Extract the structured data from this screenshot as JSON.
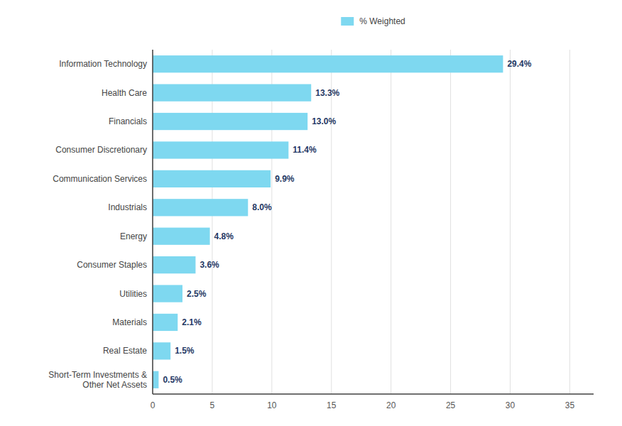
{
  "chart_data": {
    "type": "bar",
    "orientation": "horizontal",
    "categories": [
      "Short-Term Investments &\nOther Net Assets",
      "Real Estate",
      "Materials",
      "Utilities",
      "Consumer Staples",
      "Energy",
      "Industrials",
      "Communication Services",
      "Consumer Discretionary",
      "Financials",
      "Health Care",
      "Information Technology"
    ],
    "series": [
      {
        "name": "% Weighted",
        "color": "#7ED8F0",
        "values": [
          0.5,
          1.5,
          2.1,
          2.5,
          3.6,
          4.8,
          8.0,
          9.9,
          11.4,
          13.0,
          13.3,
          29.4
        ],
        "value_labels": [
          "0.5%",
          "1.5%",
          "2.1%",
          "2.5%",
          "3.6%",
          "4.8%",
          "8.0%",
          "9.9%",
          "11.4%",
          "13.0%",
          "13.3%",
          "29.4%"
        ]
      }
    ],
    "xlim": [
      0,
      37
    ],
    "xticks": [
      0,
      5,
      10,
      15,
      20,
      25,
      30,
      35
    ],
    "grid": true,
    "legend": "top",
    "data_labels": true
  }
}
